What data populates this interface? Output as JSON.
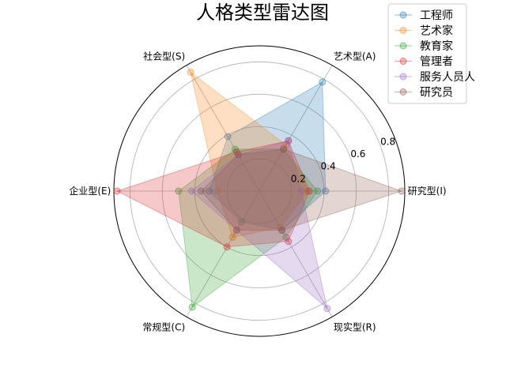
{
  "chart_data": {
    "type": "radar",
    "title": "人格类型雷达图",
    "axes": [
      "研究型(I)",
      "艺术型(A)",
      "社会型(S)",
      "企业型(E)",
      "常规型(C)",
      "现实型(R)"
    ],
    "rticks": [
      0.2,
      0.4,
      0.6,
      0.8
    ],
    "rlim": [
      0,
      0.9
    ],
    "grid": true,
    "legend_position": "top-right",
    "series": [
      {
        "name": "工程师",
        "color": "#1f77b4",
        "values": [
          0.41,
          0.78,
          0.39,
          0.31,
          0.22,
          0.28
        ]
      },
      {
        "name": "艺术家",
        "color": "#ff7f0e",
        "values": [
          0.3,
          0.33,
          0.85,
          0.26,
          0.33,
          0.26
        ]
      },
      {
        "name": "教育家",
        "color": "#2ca02c",
        "values": [
          0.36,
          0.3,
          0.3,
          0.5,
          0.83,
          0.33
        ]
      },
      {
        "name": "管理者",
        "color": "#d62728",
        "values": [
          0.31,
          0.36,
          0.28,
          0.88,
          0.4,
          0.36
        ]
      },
      {
        "name": "服务人员人",
        "color": "#9467bd",
        "values": [
          0.26,
          0.36,
          0.26,
          0.42,
          0.28,
          0.84
        ]
      },
      {
        "name": "研究员",
        "color": "#8c564b",
        "values": [
          0.88,
          0.3,
          0.26,
          0.36,
          0.28,
          0.28
        ]
      }
    ]
  }
}
